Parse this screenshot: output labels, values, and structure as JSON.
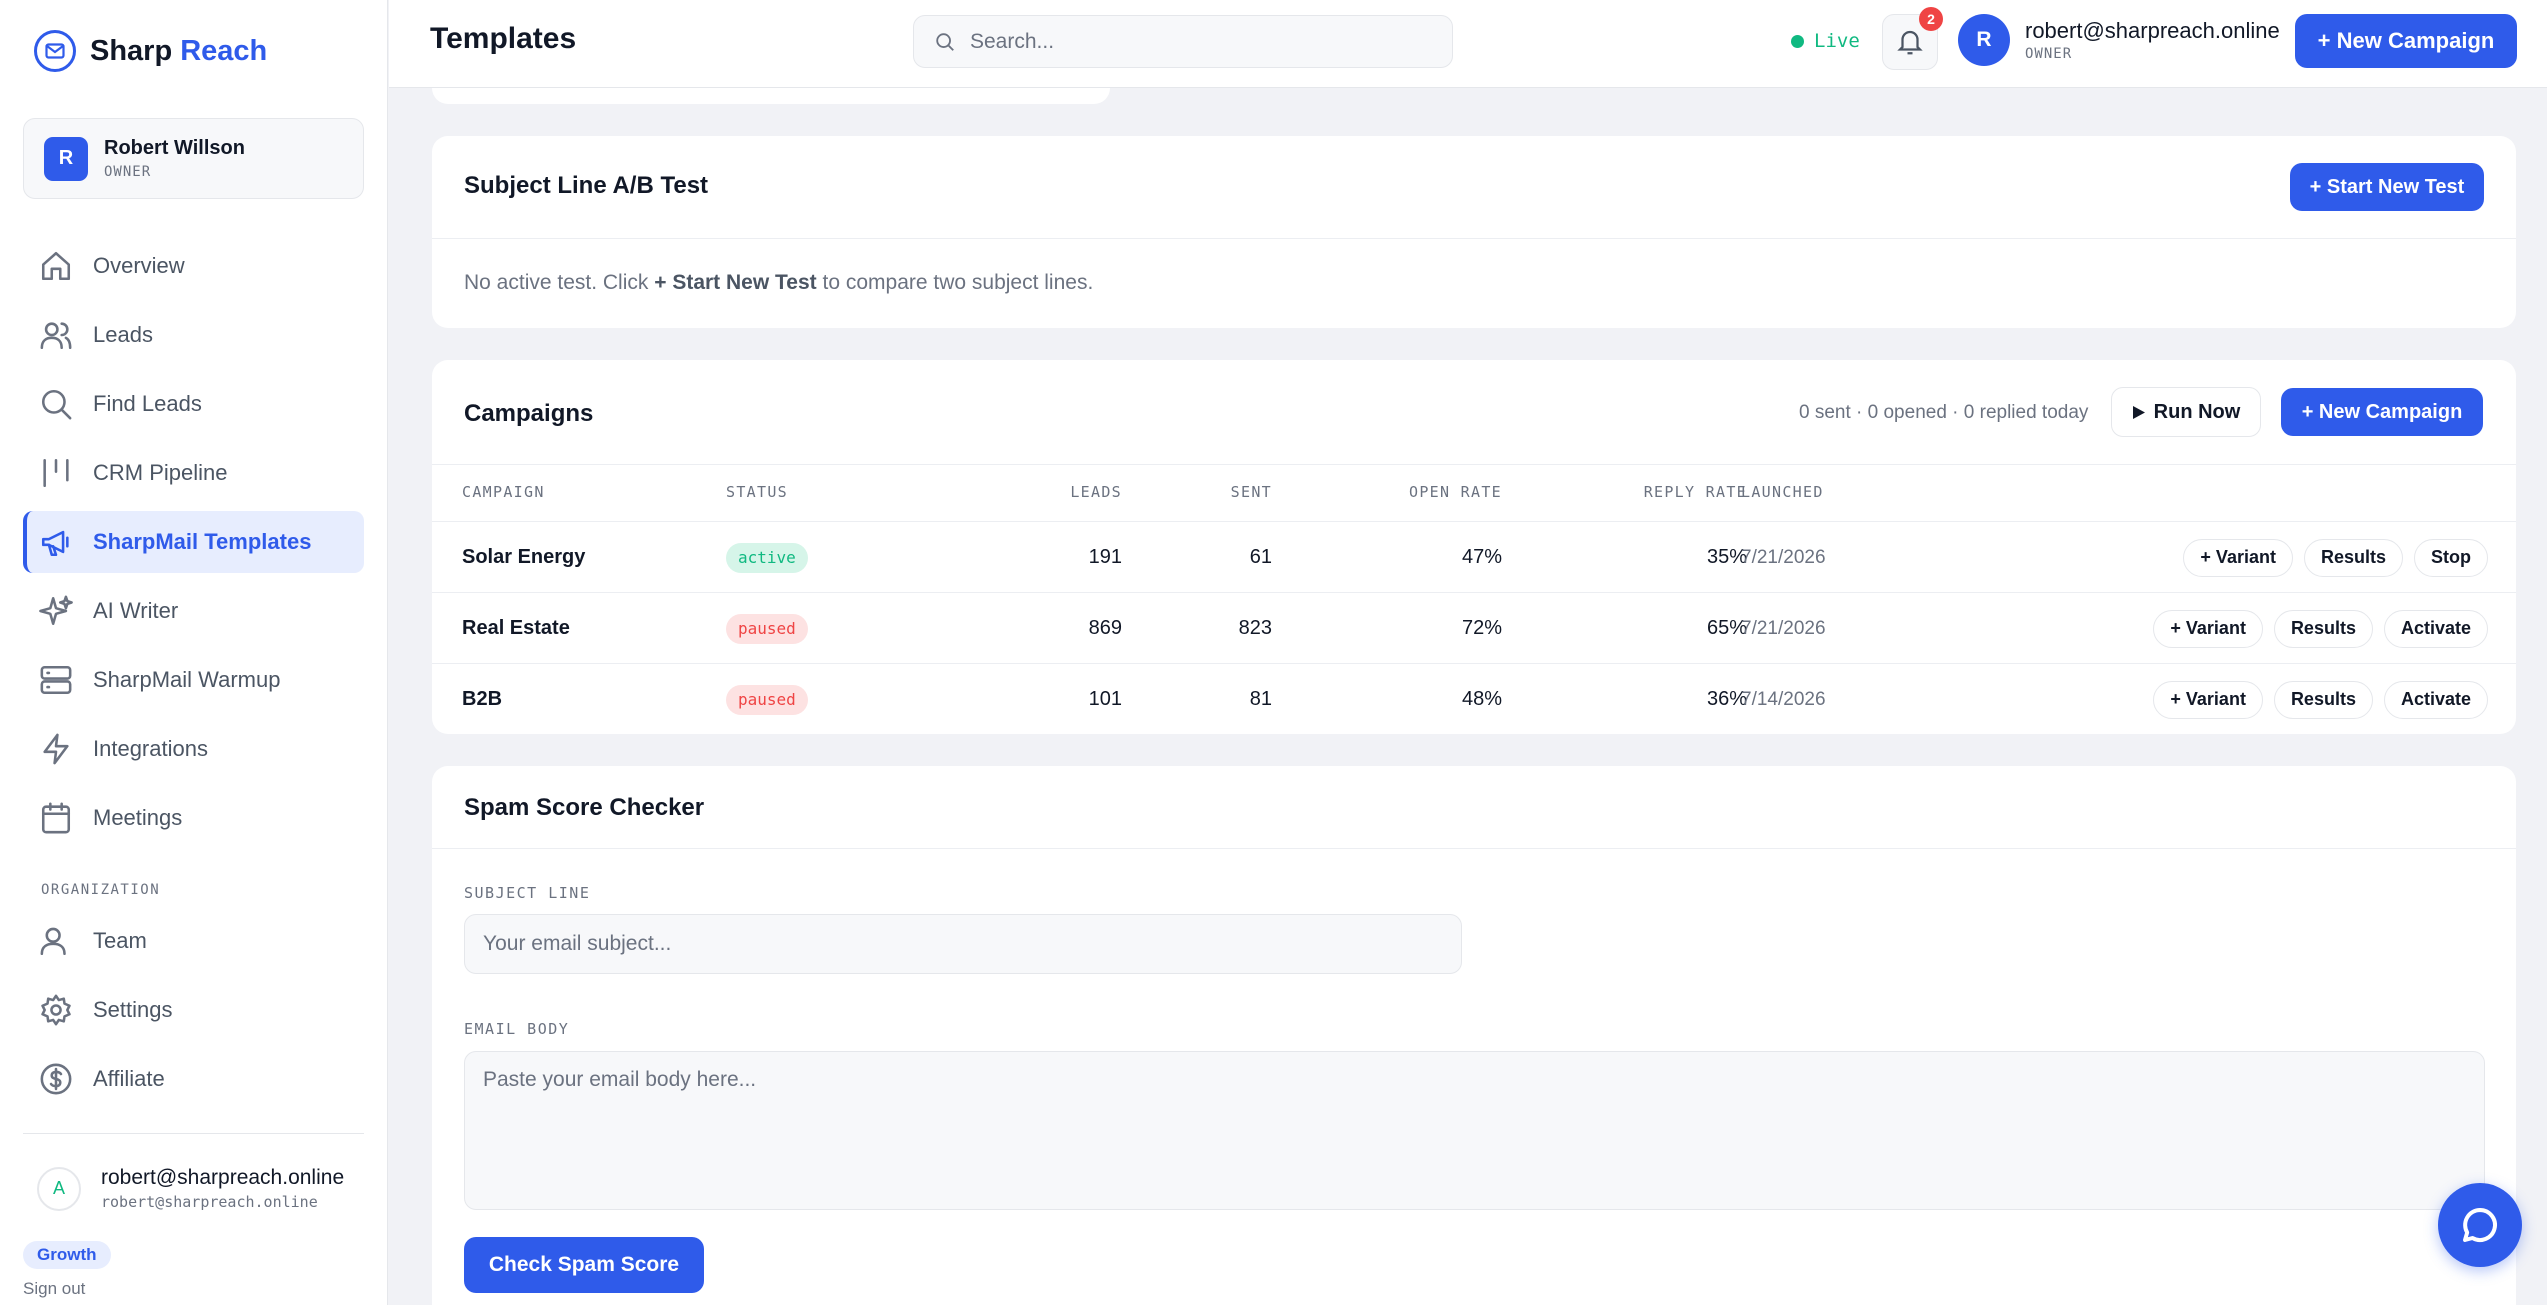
{
  "brand": {
    "name_part1": "Sharp",
    "name_part2": "Reach"
  },
  "sidebar": {
    "user": {
      "initial": "R",
      "name": "Robert Willson",
      "role": "OWNER"
    },
    "items": [
      {
        "label": "Overview",
        "icon": "home-icon"
      },
      {
        "label": "Leads",
        "icon": "users-icon"
      },
      {
        "label": "Find Leads",
        "icon": "search-icon"
      },
      {
        "label": "CRM Pipeline",
        "icon": "pipeline-icon"
      },
      {
        "label": "SharpMail Templates",
        "icon": "megaphone-icon",
        "active": true
      },
      {
        "label": "AI Writer",
        "icon": "sparkles-icon"
      },
      {
        "label": "SharpMail Warmup",
        "icon": "server-icon"
      },
      {
        "label": "Integrations",
        "icon": "bolt-icon"
      },
      {
        "label": "Meetings",
        "icon": "calendar-icon"
      }
    ],
    "org_section": "ORGANIZATION",
    "org_items": [
      {
        "label": "Team",
        "icon": "team-icon"
      },
      {
        "label": "Settings",
        "icon": "gear-icon"
      },
      {
        "label": "Affiliate",
        "icon": "dollar-icon"
      }
    ],
    "account": {
      "initial": "A",
      "email": "robert@sharpreach.online",
      "email_sub": "robert@sharpreach.online"
    },
    "plan": "Growth",
    "signout": "Sign out"
  },
  "header": {
    "title": "Templates",
    "search_placeholder": "Search...",
    "live": "Live",
    "notifications": "2",
    "user": {
      "initial": "R",
      "email": "robert@sharpreach.online",
      "role": "OWNER"
    },
    "new_campaign": "+ New Campaign"
  },
  "ab_test": {
    "title": "Subject Line A/B Test",
    "button": "+ Start New Test",
    "msg_pre": "No active test. Click ",
    "msg_bold": "+ Start New Test",
    "msg_post": " to compare two subject lines."
  },
  "campaigns": {
    "title": "Campaigns",
    "stats": "0 sent · 0 opened · 0 replied today",
    "run_now": "Run Now",
    "new_campaign": "+ New Campaign",
    "headers": {
      "campaign": "CAMPAIGN",
      "status": "STATUS",
      "leads": "LEADS",
      "sent": "SENT",
      "open_rate": "OPEN RATE",
      "reply_rate": "REPLY RATE",
      "launched": "LAUNCHED"
    },
    "rows": [
      {
        "name": "Solar Energy",
        "status": "active",
        "leads": "191",
        "sent": "61",
        "open": "47%",
        "reply": "35%",
        "launched": "7/21/2026",
        "actions": [
          "+ Variant",
          "Results",
          "Stop"
        ]
      },
      {
        "name": "Real Estate",
        "status": "paused",
        "leads": "869",
        "sent": "823",
        "open": "72%",
        "reply": "65%",
        "launched": "7/21/2026",
        "actions": [
          "+ Variant",
          "Results",
          "Activate"
        ]
      },
      {
        "name": "B2B",
        "status": "paused",
        "leads": "101",
        "sent": "81",
        "open": "48%",
        "reply": "36%",
        "launched": "7/14/2026",
        "actions": [
          "+ Variant",
          "Results",
          "Activate"
        ]
      }
    ]
  },
  "spam": {
    "title": "Spam Score Checker",
    "subject_label": "SUBJECT LINE",
    "subject_placeholder": "Your email subject...",
    "body_label": "EMAIL BODY",
    "body_placeholder": "Paste your email body here...",
    "button": "Check Spam Score"
  },
  "colors": {
    "accent": "#2f5bea",
    "success": "#10b981",
    "danger": "#ef4444"
  }
}
